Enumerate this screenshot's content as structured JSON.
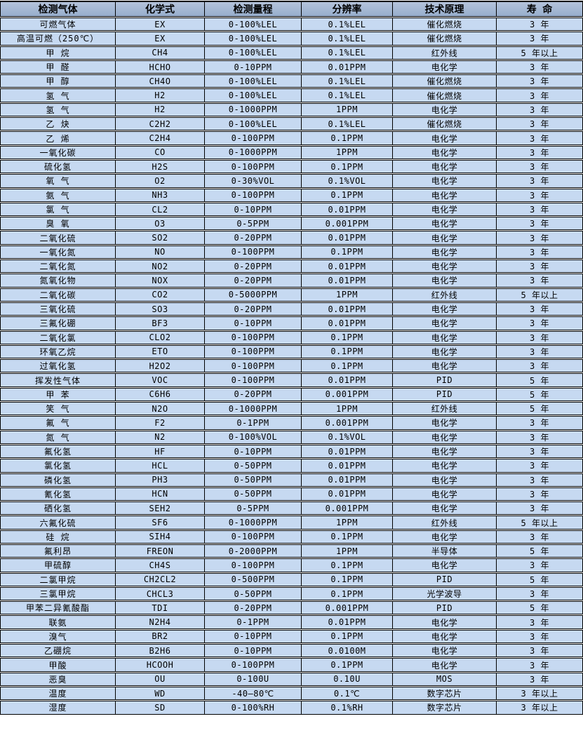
{
  "colors": {
    "header_bg_top": "#b4c3da",
    "header_bg_bottom": "#97aecd",
    "row_bg": "#c6d9f1",
    "border": "#000000",
    "gap": "#ffffff",
    "text": "#000000"
  },
  "table": {
    "columns": [
      {
        "id": "gas",
        "label": "检测气体",
        "width": 165
      },
      {
        "id": "formula",
        "label": "化学式",
        "width": 127
      },
      {
        "id": "range",
        "label": "检测量程",
        "width": 138
      },
      {
        "id": "resolution",
        "label": "分辨率",
        "width": 130
      },
      {
        "id": "principle",
        "label": "技术原理",
        "width": 148
      },
      {
        "id": "lifespan",
        "label": "寿 命",
        "width": 123
      }
    ],
    "rows": [
      [
        "可燃气体",
        "EX",
        "0-100%LEL",
        "0.1%LEL",
        "催化燃烧",
        "3 年"
      ],
      [
        "高温可燃（250℃）",
        "EX",
        "0-100%LEL",
        "0.1%LEL",
        "催化燃烧",
        "3 年"
      ],
      [
        "甲 烷",
        "CH4",
        "0-100%LEL",
        "0.1%LEL",
        "红外线",
        "5 年以上"
      ],
      [
        "甲 醛",
        "HCHO",
        "0-10PPM",
        "0.01PPM",
        "电化学",
        "3 年"
      ],
      [
        "甲 醇",
        "CH4O",
        "0-100%LEL",
        "0.1%LEL",
        "催化燃烧",
        "3 年"
      ],
      [
        "氢 气",
        "H2",
        "0-100%LEL",
        "0.1%LEL",
        "催化燃烧",
        "3 年"
      ],
      [
        "氢 气",
        "H2",
        "0-1000PPM",
        "1PPM",
        "电化学",
        "3 年"
      ],
      [
        "乙 炔",
        "C2H2",
        "0-100%LEL",
        "0.1%LEL",
        "催化燃烧",
        "3 年"
      ],
      [
        "乙 烯",
        "C2H4",
        "0-100PPM",
        "0.1PPM",
        "电化学",
        "3 年"
      ],
      [
        "一氧化碳",
        "CO",
        "0-1000PPM",
        "1PPM",
        "电化学",
        "3 年"
      ],
      [
        "硫化氢",
        "H2S",
        "0-100PPM",
        "0.1PPM",
        "电化学",
        "3 年"
      ],
      [
        "氧 气",
        "O2",
        "0-30%VOL",
        "0.1%VOL",
        "电化学",
        "3 年"
      ],
      [
        "氨 气",
        "NH3",
        "0-100PPM",
        "0.1PPM",
        "电化学",
        "3 年"
      ],
      [
        "氯 气",
        "CL2",
        "0-10PPM",
        "0.01PPM",
        "电化学",
        "3 年"
      ],
      [
        "臭 氧",
        "O3",
        "0-5PPM",
        "0.001PPM",
        "电化学",
        "3 年"
      ],
      [
        "二氧化硫",
        "SO2",
        "0-20PPM",
        "0.01PPM",
        "电化学",
        "3 年"
      ],
      [
        "一氧化氮",
        "NO",
        "0-100PPM",
        "0.1PPM",
        "电化学",
        "3 年"
      ],
      [
        "二氧化氮",
        "NO2",
        "0-20PPM",
        "0.01PPM",
        "电化学",
        "3 年"
      ],
      [
        "氮氧化物",
        "NOX",
        "0-20PPM",
        "0.01PPM",
        "电化学",
        "3 年"
      ],
      [
        "二氧化碳",
        "CO2",
        "0-5000PPM",
        "1PPM",
        "红外线",
        "5 年以上"
      ],
      [
        "三氧化硫",
        "SO3",
        "0-20PPM",
        "0.01PPM",
        "电化学",
        "3 年"
      ],
      [
        "三氟化硼",
        "BF3",
        "0-10PPM",
        "0.01PPM",
        "电化学",
        "3 年"
      ],
      [
        "二氧化氯",
        "CLO2",
        "0-100PPM",
        "0.1PPM",
        "电化学",
        "3 年"
      ],
      [
        "环氧乙烷",
        "ETO",
        "0-100PPM",
        "0.1PPM",
        "电化学",
        "3 年"
      ],
      [
        "过氧化氢",
        "H2O2",
        "0-100PPM",
        "0.1PPM",
        "电化学",
        "3 年"
      ],
      [
        "挥发性气体",
        "VOC",
        "0-100PPM",
        "0.01PPM",
        "PID",
        "5 年"
      ],
      [
        "甲 苯",
        "C6H6",
        "0-20PPM",
        "0.001PPM",
        "PID",
        "5 年"
      ],
      [
        "笑 气",
        "N2O",
        "0-1000PPM",
        "1PPM",
        "红外线",
        "5 年"
      ],
      [
        "氟 气",
        "F2",
        "0-1PPM",
        "0.001PPM",
        "电化学",
        "3 年"
      ],
      [
        "氮 气",
        "N2",
        "0-100%VOL",
        "0.1%VOL",
        "电化学",
        "3 年"
      ],
      [
        "氟化氢",
        "HF",
        "0-10PPM",
        "0.01PPM",
        "电化学",
        "3 年"
      ],
      [
        "氯化氢",
        "HCL",
        "0-50PPM",
        "0.01PPM",
        "电化学",
        "3 年"
      ],
      [
        "磷化氢",
        "PH3",
        "0-50PPM",
        "0.01PPM",
        "电化学",
        "3 年"
      ],
      [
        "氰化氢",
        "HCN",
        "0-50PPM",
        "0.01PPM",
        "电化学",
        "3 年"
      ],
      [
        "硒化氢",
        "SEH2",
        "0-5PPM",
        "0.001PPM",
        "电化学",
        "3 年"
      ],
      [
        "六氟化硫",
        "SF6",
        "0-1000PPM",
        "1PPM",
        "红外线",
        "5 年以上"
      ],
      [
        "硅 烷",
        "SIH4",
        "0-100PPM",
        "0.1PPM",
        "电化学",
        "3 年"
      ],
      [
        "氟利昂",
        "FREON",
        "0-2000PPM",
        "1PPM",
        "半导体",
        "5 年"
      ],
      [
        "甲硫醇",
        "CH4S",
        "0-100PPM",
        "0.1PPM",
        "电化学",
        "3 年"
      ],
      [
        "二氯甲烷",
        "CH2CL2",
        "0-500PPM",
        "0.1PPM",
        "PID",
        "5 年"
      ],
      [
        "三氯甲烷",
        "CHCL3",
        "0-50PPM",
        "0.1PPM",
        "光学波导",
        "3 年"
      ],
      [
        "甲苯二异氰酸酯",
        "TDI",
        "0-20PPM",
        "0.001PPM",
        "PID",
        "5 年"
      ],
      [
        "联氨",
        "N2H4",
        "0-1PPM",
        "0.01PPM",
        "电化学",
        "3 年"
      ],
      [
        "溴气",
        "BR2",
        "0-10PPM",
        "0.1PPM",
        "电化学",
        "3 年"
      ],
      [
        "乙硼烷",
        "B2H6",
        "0-10PPM",
        "0.0100M",
        "电化学",
        "3 年"
      ],
      [
        "甲酸",
        "HCOOH",
        "0-100PPM",
        "0.1PPM",
        "电化学",
        "3 年"
      ],
      [
        "恶臭",
        "OU",
        "0-100U",
        "0.10U",
        "MOS",
        "3 年"
      ],
      [
        "温度",
        "WD",
        "-40—80℃",
        "0.1℃",
        "数字芯片",
        "3 年以上"
      ],
      [
        "湿度",
        "SD",
        "0-100%RH",
        "0.1%RH",
        "数字芯片",
        "3 年以上"
      ]
    ]
  }
}
